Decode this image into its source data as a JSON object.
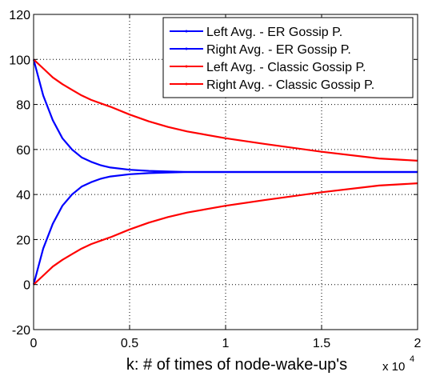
{
  "chart_data": {
    "type": "line",
    "title": "",
    "xlabel": "k: # of times of node-wake-up's",
    "ylabel": "",
    "x_exponent": {
      "base": "x 10",
      "exp": "4"
    },
    "xlim": [
      0,
      20000
    ],
    "ylim": [
      -20,
      120
    ],
    "xticks": [
      0,
      5000,
      10000,
      15000,
      20000
    ],
    "xtick_labels": [
      "0",
      "0.5",
      "1",
      "1.5",
      "2"
    ],
    "yticks": [
      -20,
      0,
      20,
      40,
      60,
      80,
      100,
      120
    ],
    "ytick_labels": [
      "-20",
      "0",
      "20",
      "40",
      "60",
      "80",
      "100",
      "120"
    ],
    "grid": true,
    "legend_position": "top-right",
    "x": [
      0,
      500,
      1000,
      1500,
      2000,
      2500,
      3000,
      3500,
      4000,
      5000,
      6000,
      7000,
      8000,
      10000,
      12000,
      15000,
      18000,
      20000
    ],
    "series": [
      {
        "name": "Left Avg. - ER Gossip P.",
        "color": "#0000ff",
        "values": [
          100,
          84,
          73,
          65,
          60,
          56.5,
          54.5,
          53,
          52,
          51,
          50.5,
          50.2,
          50,
          50,
          50,
          50,
          50,
          50
        ]
      },
      {
        "name": "Right Avg. - ER Gossip P.",
        "color": "#0000ff",
        "values": [
          0,
          16,
          27,
          35,
          40,
          43.5,
          45.5,
          47,
          48,
          49,
          49.5,
          49.8,
          50,
          50,
          50,
          50,
          50,
          50
        ]
      },
      {
        "name": "Left Avg. - Classic Gossip P.",
        "color": "#ff0000",
        "values": [
          100,
          96,
          92,
          89,
          86.5,
          84,
          82,
          80.5,
          79,
          75.5,
          72.5,
          70,
          68,
          65,
          62.5,
          59,
          56,
          55
        ]
      },
      {
        "name": "Right Avg. - Classic Gossip P.",
        "color": "#ff0000",
        "values": [
          0,
          4,
          8,
          11,
          13.5,
          16,
          18,
          19.5,
          21,
          24.5,
          27.5,
          30,
          32,
          35,
          37.5,
          41,
          44,
          45
        ]
      }
    ]
  }
}
